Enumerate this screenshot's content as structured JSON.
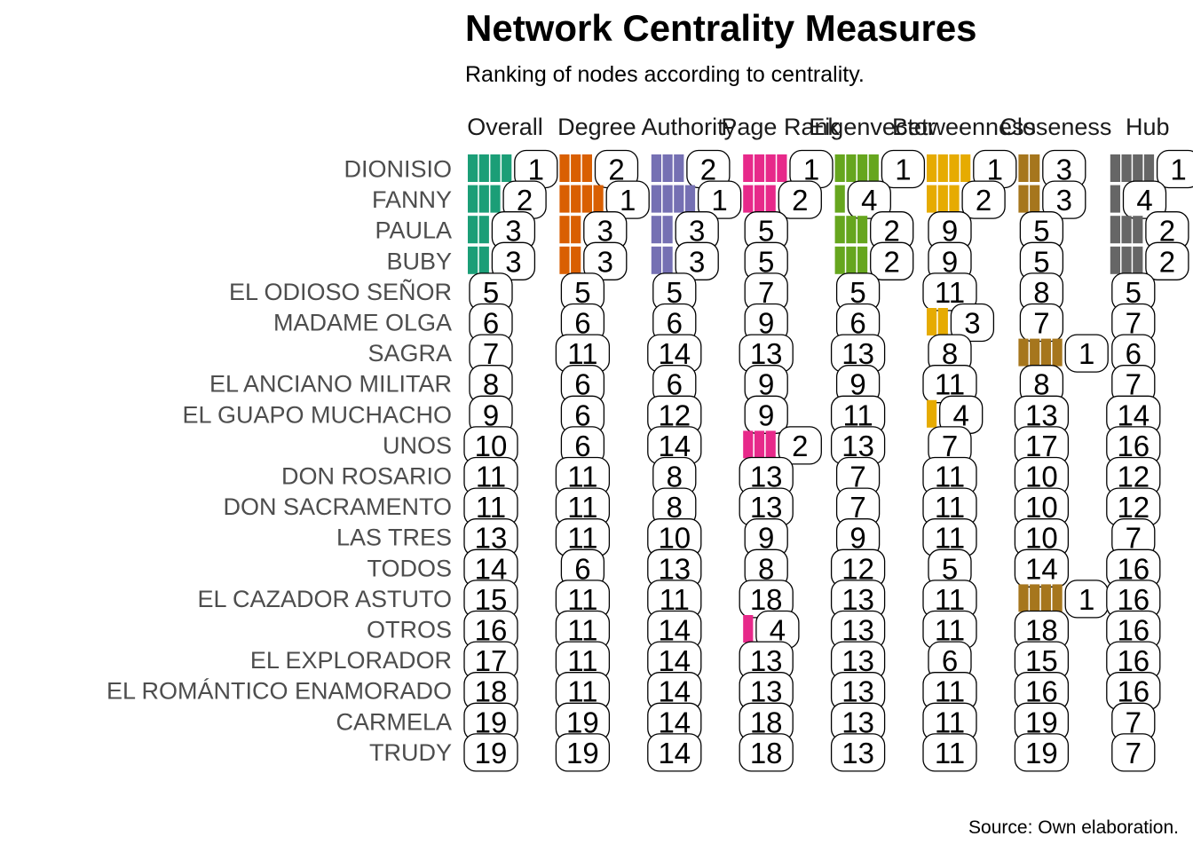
{
  "chart_data": {
    "type": "bar",
    "title": "Network Centrality Measures",
    "subtitle": "Ranking of nodes according to centrality.",
    "caption": "Source: Own elaboration.",
    "categories": [
      "DIONISIO",
      "FANNY",
      "PAULA",
      "BUBY",
      "EL ODIOSO SEÑOR",
      "MADAME OLGA",
      "SAGRA",
      "EL ANCIANO MILITAR",
      "EL GUAPO MUCHACHO",
      "UNOS",
      "DON ROSARIO",
      "DON SACRAMENTO",
      "LAS TRES",
      "TODOS",
      "EL CAZADOR ASTUTO",
      "OTROS",
      "EL EXPLORADOR",
      "EL ROMÁNTICO ENAMORADO",
      "CARMELA",
      "TRUDY"
    ],
    "max_rank": 19,
    "series": [
      {
        "name": "Overall",
        "color": "#1b9e77",
        "values": [
          1,
          2,
          3,
          3,
          5,
          6,
          7,
          8,
          9,
          10,
          11,
          11,
          13,
          14,
          15,
          16,
          17,
          18,
          19,
          19
        ]
      },
      {
        "name": "Degree",
        "color": "#d95f02",
        "values": [
          2,
          1,
          3,
          3,
          5,
          6,
          11,
          6,
          6,
          6,
          11,
          11,
          11,
          6,
          11,
          11,
          11,
          11,
          19,
          19
        ]
      },
      {
        "name": "Authority",
        "color": "#7570b3",
        "values": [
          2,
          1,
          3,
          3,
          5,
          6,
          14,
          6,
          12,
          14,
          8,
          8,
          10,
          13,
          11,
          14,
          14,
          14,
          14,
          14
        ]
      },
      {
        "name": "Page Rank",
        "color": "#e7298a",
        "values": [
          1,
          2,
          5,
          5,
          7,
          9,
          13,
          9,
          9,
          2,
          13,
          13,
          9,
          8,
          18,
          4,
          13,
          13,
          18,
          18
        ]
      },
      {
        "name": "Eigenvector",
        "color": "#66a61e",
        "values": [
          1,
          4,
          2,
          2,
          5,
          6,
          13,
          9,
          11,
          13,
          7,
          7,
          9,
          12,
          13,
          13,
          13,
          13,
          13,
          13
        ]
      },
      {
        "name": "Betweenness",
        "color": "#e6ab02",
        "values": [
          1,
          2,
          9,
          9,
          11,
          3,
          8,
          11,
          4,
          7,
          11,
          11,
          11,
          5,
          11,
          11,
          6,
          11,
          11,
          11
        ]
      },
      {
        "name": "Closeness",
        "color": "#a6761d",
        "values": [
          3,
          3,
          5,
          5,
          8,
          7,
          1,
          8,
          13,
          17,
          10,
          10,
          10,
          14,
          1,
          18,
          15,
          16,
          19,
          19
        ]
      },
      {
        "name": "Hub",
        "color": "#666666",
        "values": [
          1,
          4,
          2,
          2,
          5,
          7,
          6,
          7,
          14,
          16,
          12,
          12,
          7,
          16,
          16,
          16,
          16,
          16,
          7,
          7
        ]
      }
    ]
  }
}
